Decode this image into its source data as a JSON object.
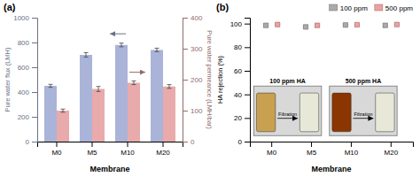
{
  "chart_data": [
    {
      "type": "bar",
      "title": "(a)",
      "categories": [
        "M0",
        "M5",
        "M10",
        "M20"
      ],
      "x_label": "Membrane",
      "y_label": "Pure water flux (LMH)",
      "y2_label": "Pure water permeance (LMH/bar)",
      "ylim": [
        0,
        1000
      ],
      "yticks": [
        0,
        200,
        400,
        600,
        800,
        1000
      ],
      "y2lim": [
        0,
        400
      ],
      "y2ticks": [
        0,
        100,
        200,
        300,
        400
      ],
      "grid": false,
      "series": [
        {
          "color": "#aab4d8",
          "values": [
            450,
            700,
            780,
            740
          ],
          "errors": [
            12,
            18,
            15,
            14
          ]
        },
        {
          "color": "#e8aaaa",
          "values": [
            100,
            170,
            190,
            178
          ],
          "errors": [
            5,
            8,
            6,
            6
          ],
          "axis": "y2"
        }
      ]
    },
    {
      "type": "scatter",
      "title": "(b)",
      "marker": "square",
      "categories": [
        "M0",
        "M5",
        "M10",
        "M20"
      ],
      "x_label": "Membrane",
      "y_label": "HA rejection (%)",
      "ylim": [
        0,
        105
      ],
      "yticks": [
        0,
        20,
        40,
        60,
        80,
        100
      ],
      "grid": false,
      "legend": "upper right",
      "series": [
        {
          "name": "100 ppm",
          "color": "#aaaaaa",
          "values": [
            98.5,
            97.2,
            98.8,
            98.5
          ],
          "errors": [
            0.5,
            0.6,
            0.4,
            0.5
          ]
        },
        {
          "name": "500 ppm",
          "color": "#f0a0a0",
          "values": [
            99.2,
            98.5,
            99.0,
            99.2
          ],
          "errors": [
            0.3,
            0.5,
            0.3,
            0.3
          ]
        }
      ],
      "annotations": [
        {
          "text": "100 ppm HA",
          "label": "Filtration",
          "color": "#c8a050"
        },
        {
          "text": "500 ppm HA",
          "label": "Filtration",
          "color": "#8B3500"
        }
      ]
    }
  ]
}
